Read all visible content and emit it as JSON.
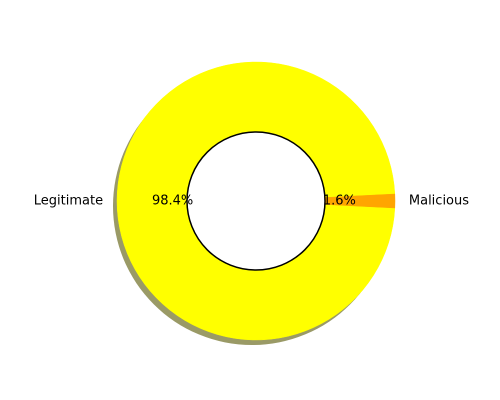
{
  "chart_data": {
    "type": "pie",
    "style": "donut",
    "shadow": true,
    "slices": [
      {
        "label": "Legitimate",
        "value": 98.4,
        "percent_label": "98.4%",
        "color": "#ffff00"
      },
      {
        "label": "Malicious",
        "value": 1.6,
        "percent_label": "1.6%",
        "color": "#ffa500"
      }
    ],
    "center_fill": "#ffffff",
    "center_stroke": "#000000",
    "shadow_color": "#9a9a66"
  }
}
